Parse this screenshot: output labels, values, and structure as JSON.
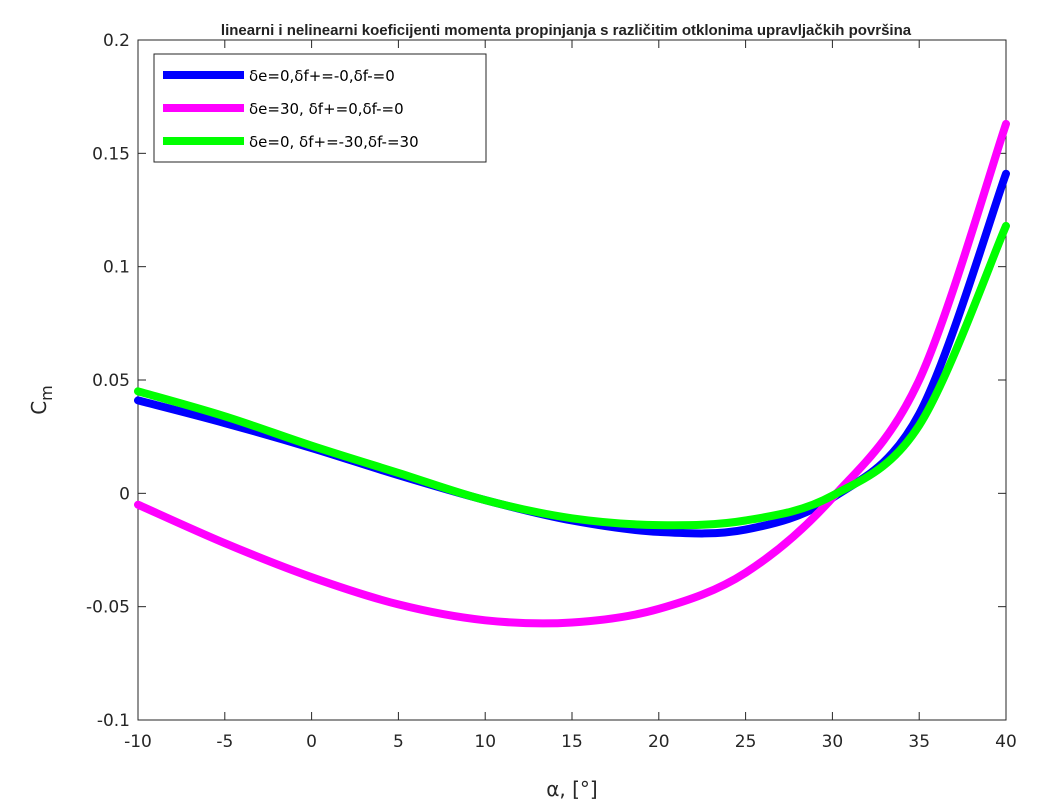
{
  "chart_data": {
    "type": "line",
    "title": "linearni i nelinearni koeficijenti momenta propinjanja s različitim otklonima upravljačkih površina",
    "xlabel": "α, [°]",
    "ylabel": "C",
    "ylabel_sub": "m",
    "xlim": [
      -10,
      40
    ],
    "ylim": [
      -0.1,
      0.2
    ],
    "xticks": [
      -10,
      -5,
      0,
      5,
      10,
      15,
      20,
      25,
      30,
      35,
      40
    ],
    "xtick_labels": [
      "-10",
      "-5",
      "0",
      "5",
      "10",
      "15",
      "20",
      "25",
      "30",
      "35",
      "40"
    ],
    "yticks": [
      -0.1,
      -0.05,
      0,
      0.05,
      0.1,
      0.15,
      0.2
    ],
    "ytick_labels": [
      "-0.1",
      "-0.05",
      "0",
      "0.05",
      "0.1",
      "0.15",
      "0.2"
    ],
    "grid": false,
    "legend_position": "top-left",
    "x": [
      -10,
      -5,
      0,
      5,
      10,
      15,
      20,
      25,
      30,
      35,
      40
    ],
    "series": [
      {
        "name": "δe=0,δf+=-0,δf-=0",
        "color": "#0000ff",
        "values": [
          0.041,
          0.031,
          0.02,
          0.008,
          -0.003,
          -0.012,
          -0.017,
          -0.016,
          -0.002,
          0.035,
          0.141
        ]
      },
      {
        "name": "δe=30, δf+=0,δf-=0",
        "color": "#ff00ff",
        "values": [
          -0.005,
          -0.022,
          -0.037,
          -0.049,
          -0.056,
          -0.057,
          -0.051,
          -0.035,
          -0.002,
          0.05,
          0.163
        ]
      },
      {
        "name": "δe=0, δf+=-30,δf-=30",
        "color": "#00ff00",
        "values": [
          0.045,
          0.034,
          0.021,
          0.009,
          -0.003,
          -0.011,
          -0.014,
          -0.012,
          -0.001,
          0.03,
          0.118
        ]
      }
    ]
  }
}
